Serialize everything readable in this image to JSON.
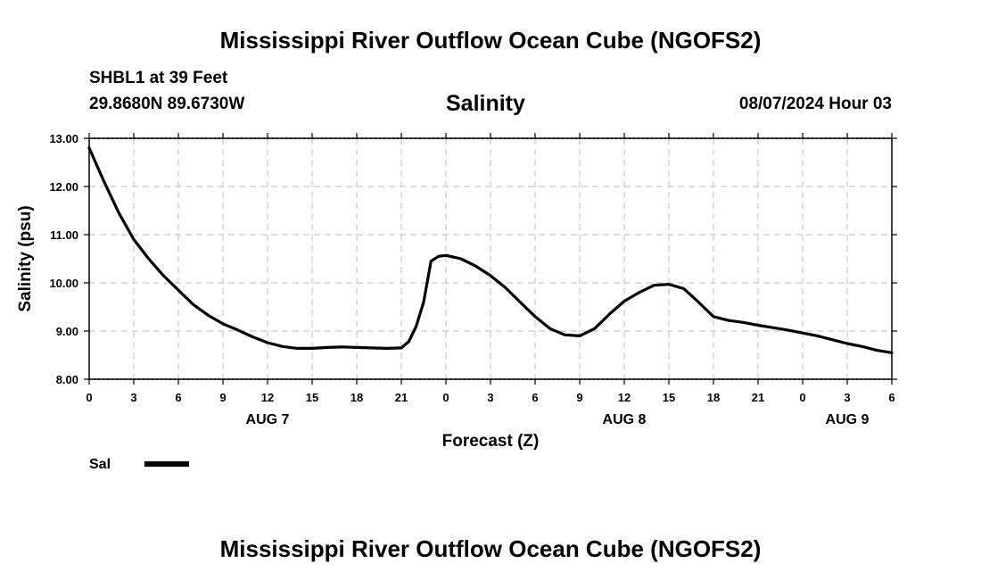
{
  "page": {
    "main_title": "Mississippi River Outflow Ocean Cube (NGOFS2)",
    "footer_title": "Mississippi River Outflow Ocean Cube (NGOFS2)",
    "station_line": "SHBL1 at 39 Feet",
    "coord_line": "29.8680N  89.6730W",
    "plot_title": "Salinity",
    "datetime": "08/07/2024 Hour 03"
  },
  "colors": {
    "line": "#000000",
    "grid": "#c8c8c8",
    "axis": "#000000"
  },
  "chart_data": {
    "type": "line",
    "title": "Salinity",
    "xlabel": "Forecast (Z)",
    "ylabel": "Salinity (psu)",
    "xlim": [
      0,
      54
    ],
    "ylim": [
      8,
      13
    ],
    "yticks": [
      8,
      9,
      10,
      11,
      12,
      13
    ],
    "ytick_labels": [
      "8.00",
      "9.00",
      "10.00",
      "11.00",
      "12.00",
      "13.00"
    ],
    "xticks": [
      0,
      3,
      6,
      9,
      12,
      15,
      18,
      21,
      24,
      27,
      30,
      33,
      36,
      39,
      42,
      45,
      48,
      51,
      54
    ],
    "xtick_labels": [
      "0",
      "3",
      "6",
      "9",
      "12",
      "15",
      "18",
      "21",
      "0",
      "3",
      "6",
      "9",
      "12",
      "15",
      "18",
      "21",
      "0",
      "3",
      "6"
    ],
    "day_labels": [
      {
        "x": 12,
        "label": "AUG 7"
      },
      {
        "x": 36,
        "label": "AUG 8"
      },
      {
        "x": 51,
        "label": "AUG 9"
      }
    ],
    "grid": true,
    "legend": {
      "position": "bottom-left",
      "entries": [
        "Sal"
      ]
    },
    "series": [
      {
        "name": "Sal",
        "x": [
          0,
          0.5,
          1,
          2,
          3,
          4,
          5,
          6,
          7,
          8,
          9,
          10,
          11,
          12,
          13,
          14,
          15,
          16,
          17,
          18,
          19,
          20,
          21,
          21.5,
          22,
          22.5,
          23,
          23.5,
          24,
          25,
          26,
          27,
          28,
          29,
          30,
          31,
          32,
          33,
          34,
          35,
          36,
          37,
          38,
          39,
          40,
          41,
          42,
          43,
          44,
          45,
          46,
          47,
          48,
          49,
          50,
          51,
          52,
          53,
          54
        ],
        "values": [
          12.8,
          12.45,
          12.1,
          11.45,
          10.9,
          10.5,
          10.15,
          9.85,
          9.55,
          9.33,
          9.15,
          9.02,
          8.88,
          8.76,
          8.68,
          8.64,
          8.64,
          8.66,
          8.67,
          8.66,
          8.65,
          8.64,
          8.65,
          8.78,
          9.1,
          9.6,
          10.45,
          10.55,
          10.57,
          10.5,
          10.35,
          10.15,
          9.9,
          9.6,
          9.3,
          9.05,
          8.92,
          8.9,
          9.05,
          9.35,
          9.62,
          9.8,
          9.95,
          9.97,
          9.88,
          9.6,
          9.3,
          9.22,
          9.18,
          9.12,
          9.07,
          9.02,
          8.96,
          8.9,
          8.82,
          8.74,
          8.68,
          8.6,
          8.55
        ]
      }
    ]
  }
}
